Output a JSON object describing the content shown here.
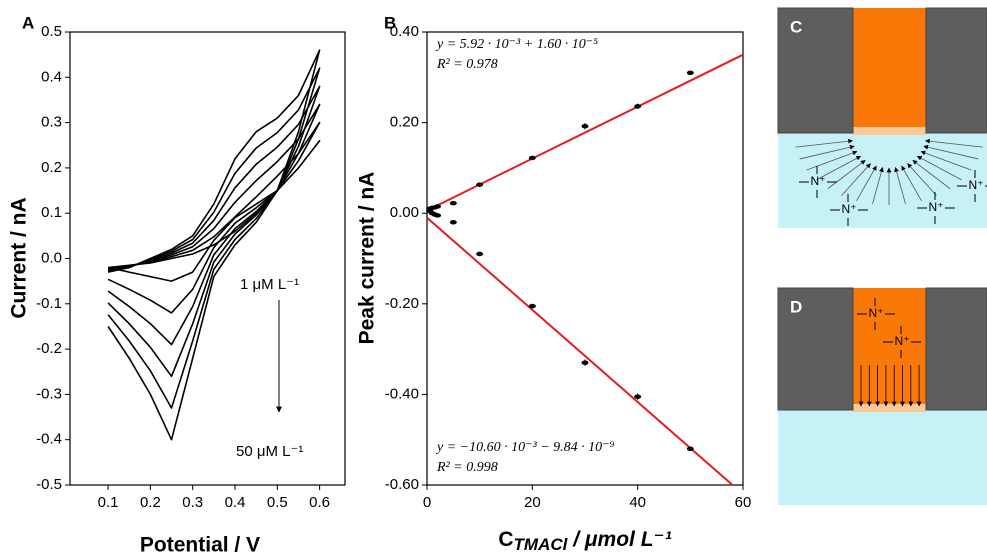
{
  "chart_data": [
    {
      "type": "line",
      "panel": "A",
      "x_label": "Potential / V",
      "y_label": "Current / nA",
      "xlim": [
        0.01,
        0.66
      ],
      "ylim": [
        -0.5,
        0.5
      ],
      "xticks": [
        0.1,
        0.2,
        0.3,
        0.4,
        0.5,
        0.6
      ],
      "yticks": [
        0.5,
        0.4,
        0.3,
        0.2,
        0.1,
        {
          "value": 0,
          "label": "0.0"
        },
        -0.1,
        -0.2,
        -0.3,
        -0.4,
        -0.5
      ],
      "x": [
        0.1,
        0.15,
        0.2,
        0.25,
        0.3,
        0.35,
        0.4,
        0.45,
        0.5,
        0.55,
        0.6,
        0.55,
        0.5,
        0.45,
        0.4,
        0.35,
        0.3,
        0.25,
        0.2,
        0.15,
        0.1
      ],
      "series": [
        {
          "color": "#000000",
          "values": [
            -0.02,
            -0.015,
            -0.01,
            0,
            0.01,
            0.03,
            0.06,
            0.1,
            0.15,
            0.2,
            0.26,
            0.2,
            0.15,
            0.12,
            0.09,
            0.04,
            -0.03,
            -0.05,
            -0.04,
            -0.03,
            -0.02
          ]
        },
        {
          "color": "#000000",
          "values": [
            -0.022,
            -0.016,
            -0.008,
            0.004,
            0.018,
            0.048,
            0.092,
            0.136,
            0.182,
            0.232,
            0.3,
            0.216,
            0.15,
            0.112,
            0.078,
            0.024,
            -0.068,
            -0.12,
            -0.092,
            -0.068,
            -0.046
          ]
        },
        {
          "color": "#000000",
          "values": [
            -0.024,
            -0.017,
            -0.006,
            0.008,
            0.026,
            0.066,
            0.124,
            0.172,
            0.214,
            0.264,
            0.34,
            0.232,
            0.15,
            0.104,
            0.066,
            0.008,
            -0.106,
            -0.19,
            -0.144,
            -0.106,
            -0.072
          ]
        },
        {
          "color": "#000000",
          "values": [
            -0.026,
            -0.018,
            -0.004,
            0.012,
            0.034,
            0.084,
            0.156,
            0.208,
            0.246,
            0.296,
            0.38,
            0.248,
            0.15,
            0.096,
            0.054,
            -0.008,
            -0.144,
            -0.26,
            -0.196,
            -0.144,
            -0.098
          ]
        },
        {
          "color": "#000000",
          "values": [
            -0.028,
            -0.019,
            -0.002,
            0.016,
            0.042,
            0.102,
            0.188,
            0.244,
            0.278,
            0.328,
            0.42,
            0.264,
            0.15,
            0.088,
            0.042,
            -0.024,
            -0.182,
            -0.33,
            -0.248,
            -0.182,
            -0.124
          ]
        },
        {
          "color": "#000000",
          "values": [
            -0.03,
            -0.02,
            0,
            0.02,
            0.05,
            0.12,
            0.22,
            0.28,
            0.31,
            0.36,
            0.46,
            0.28,
            0.15,
            0.08,
            0.03,
            -0.04,
            -0.22,
            -0.4,
            -0.3,
            -0.22,
            -0.15
          ]
        }
      ],
      "annotations": [
        "1 μM L⁻¹",
        "50 μM L⁻¹"
      ]
    },
    {
      "type": "scatter",
      "panel": "B",
      "y_label": "Peak current / nA",
      "x_label": {
        "main": "C",
        "sub": "TMACl",
        "rest": " / μmol L⁻¹"
      },
      "xlim": [
        0,
        60
      ],
      "ylim": [
        -0.6,
        0.4
      ],
      "xticks": [
        0,
        20,
        40,
        60
      ],
      "yticks": [
        {
          "value": 0.4,
          "label": "0.40"
        },
        {
          "value": 0.2,
          "label": "0.20"
        },
        {
          "value": 0,
          "label": "0.00"
        },
        {
          "value": -0.2,
          "label": "-0.20"
        },
        {
          "value": -0.4,
          "label": "-0.40"
        },
        {
          "value": -0.6,
          "label": "-0.60"
        }
      ],
      "series": [
        {
          "color": "#000000",
          "x": [
            0.5,
            1,
            1.5,
            2,
            5,
            10,
            20,
            30,
            40,
            50
          ],
          "values": [
            0.01,
            0.012,
            0.013,
            0.015,
            0.022,
            0.063,
            0.122,
            0.192,
            0.236,
            0.31
          ],
          "errors": [
            0.004,
            0.004,
            0.004,
            0.004,
            0.004,
            0.005,
            0.005,
            0.007,
            0.006,
            0.005
          ]
        },
        {
          "color": "#000000",
          "x": [
            0.5,
            1,
            1.5,
            2,
            5,
            10,
            20,
            30,
            40,
            50
          ],
          "values": [
            0.005,
            0,
            -0.003,
            -0.005,
            -0.02,
            -0.09,
            -0.205,
            -0.33,
            -0.405,
            -0.52
          ],
          "errors": [
            0.004,
            0.004,
            0.004,
            0.004,
            0.005,
            0.005,
            0.005,
            0.007,
            0.007,
            0.005
          ]
        }
      ],
      "fits": [
        {
          "color": "#e8191f",
          "x": [
            0,
            60
          ],
          "values": [
            0.006,
            0.35
          ]
        },
        {
          "color": "#e8191f",
          "x": [
            0,
            58
          ],
          "values": [
            -0.01,
            -0.6
          ]
        }
      ],
      "annotations": [
        "y = 5.92 · 10⁻³ + 1.60 · 10⁻⁵",
        "R² = 0.978",
        "y = −10.60 · 10⁻³ − 9.84 · 10⁻⁹",
        "R² = 0.998"
      ]
    }
  ],
  "diagrams": [
    {
      "panel": "C",
      "ions": [
        "N⁺",
        "N⁺",
        "N⁺",
        "N⁺"
      ]
    },
    {
      "panel": "D",
      "ions": [
        "N⁺",
        "N⁺"
      ]
    }
  ]
}
